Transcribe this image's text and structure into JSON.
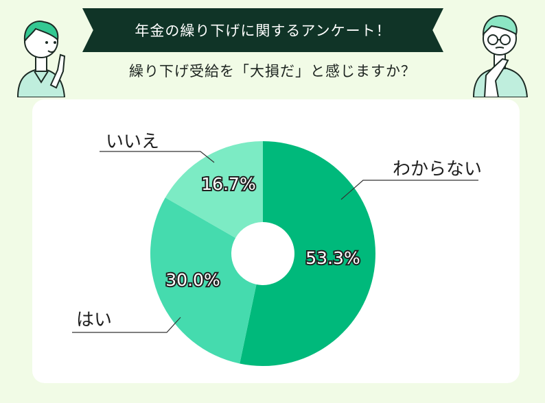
{
  "header": {
    "title": "年金の繰り下げに関するアンケート！",
    "question": "繰り下げ受給を「大損だ」と感じますか？"
  },
  "chart_data": {
    "type": "pie",
    "donut": true,
    "categories": [
      "わからない",
      "はい",
      "いいえ"
    ],
    "values": [
      53.3,
      30.0,
      16.7
    ],
    "value_labels": [
      "53.3%",
      "30.0%",
      "16.7%"
    ],
    "colors": [
      "#00b97b",
      "#45dbae",
      "#7cebc4"
    ],
    "start_angle_deg": 0,
    "direction": "clockwise"
  }
}
